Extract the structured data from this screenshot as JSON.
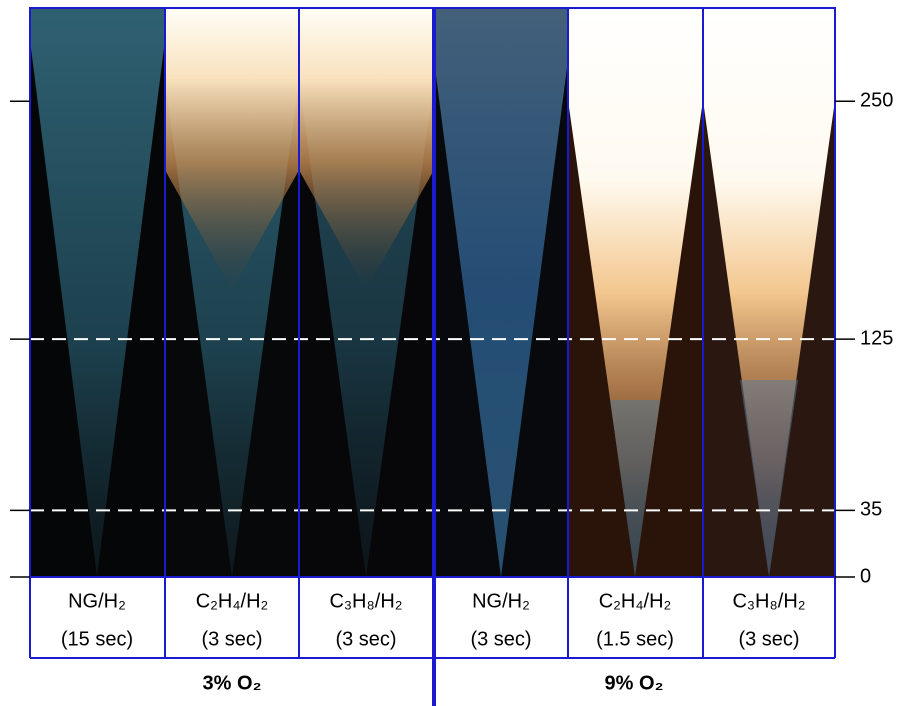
{
  "panels": [
    {
      "label": "NG/H₂",
      "exposure": "(15 sec)"
    },
    {
      "label": "C₂H₄/H₂",
      "exposure": "(3 sec)"
    },
    {
      "label": "C₃H₈/H₂",
      "exposure": "(3 sec)"
    },
    {
      "label": "NG/H₂",
      "exposure": "(3 sec)"
    },
    {
      "label": "C₂H₄/H₂",
      "exposure": "(1.5 sec)"
    },
    {
      "label": "C₃H₈/H₂",
      "exposure": "(3 sec)"
    }
  ],
  "groups": [
    {
      "label": "3% O₂"
    },
    {
      "label": "9% O₂"
    }
  ],
  "axis": {
    "ylim": [
      0,
      299
    ],
    "ticks": [
      0,
      35,
      125,
      250
    ]
  },
  "reference_lines": [
    35,
    125
  ]
}
